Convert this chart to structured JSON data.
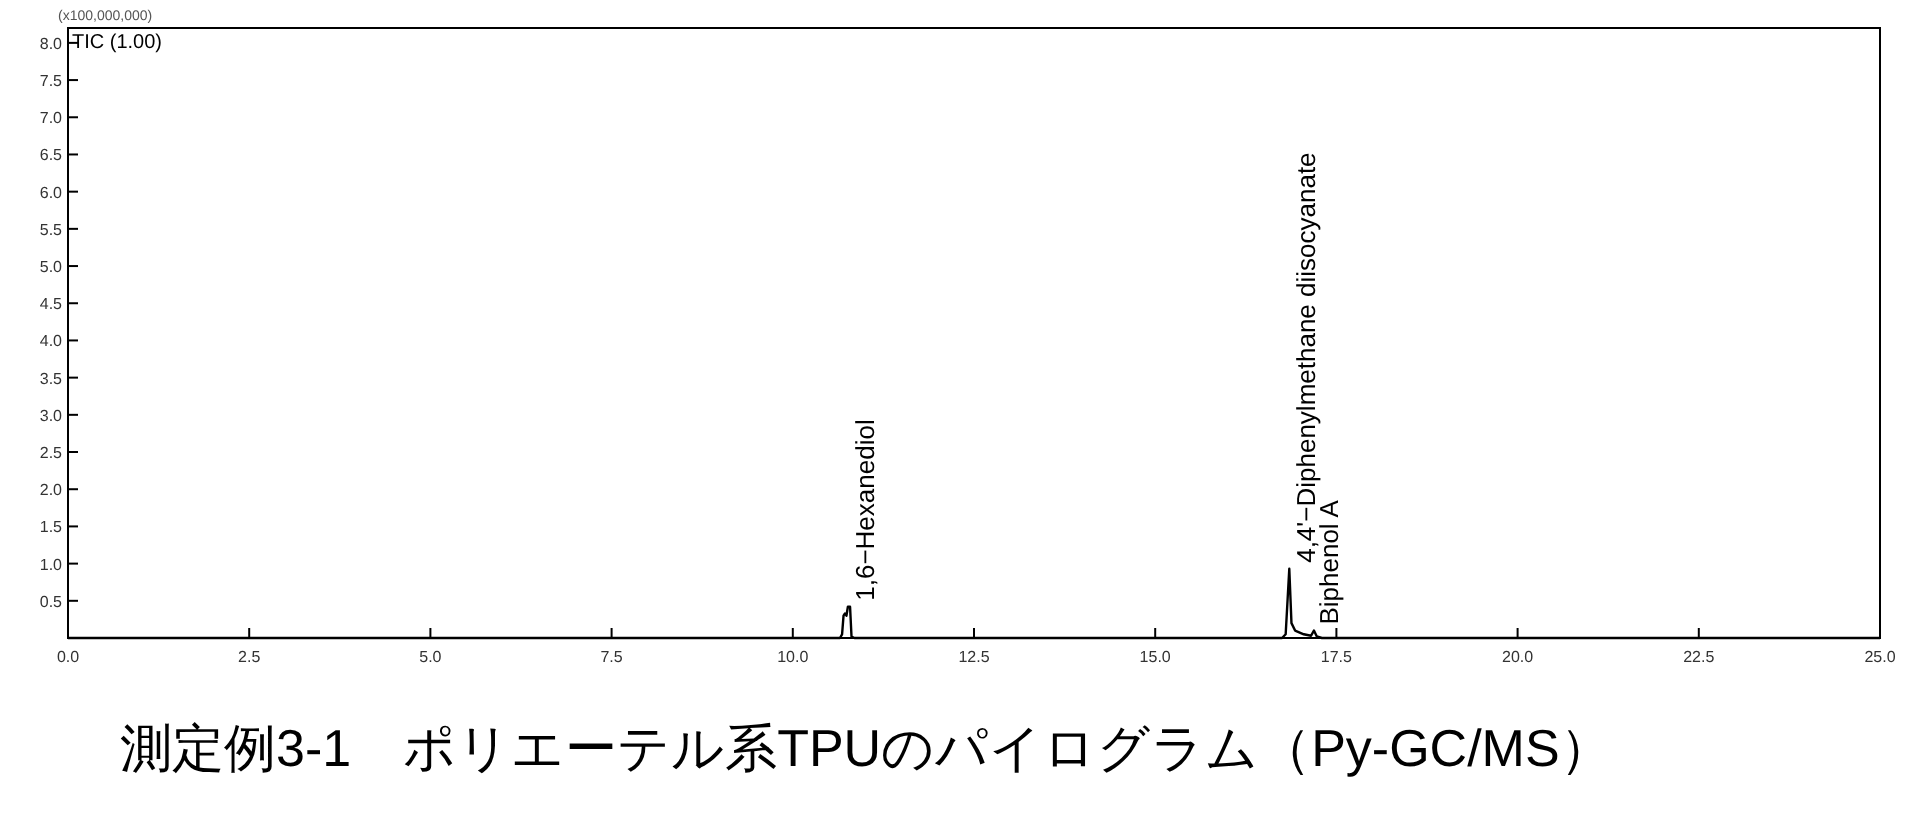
{
  "chart_data": {
    "type": "line",
    "title": "測定例3-1　ポリエーテル系TPUのパイログラム（Py-GC/MS）",
    "ylabel": "(x100,000,000)",
    "annotations": [
      "TIC (1.00)",
      {
        "text": "1,6−Hexanediol",
        "x": 10.79,
        "y": 0.42
      },
      {
        "text": "4,4'−Diphenylmethane diisocyanate",
        "x": 16.88,
        "y": 0.93
      },
      {
        "text": "Biphenol A",
        "x": 17.19,
        "y": 0.1
      }
    ],
    "xlim": [
      0,
      25
    ],
    "xticks": [
      {
        "value": 0,
        "label": "0.0"
      },
      2.5,
      {
        "value": 5,
        "label": "5.0"
      },
      7.5,
      {
        "value": 10,
        "label": "10.0"
      },
      12.5,
      {
        "value": 15,
        "label": "15.0"
      },
      17.5,
      {
        "value": 20,
        "label": "20.0"
      },
      22.5,
      {
        "value": 25,
        "label": "25.0"
      }
    ],
    "ylim": [
      0,
      8.2
    ],
    "yticks": [
      0.5,
      {
        "value": 1,
        "label": "1.0"
      },
      1.5,
      {
        "value": 2,
        "label": "2.0"
      },
      2.5,
      {
        "value": 3,
        "label": "3.0"
      },
      3.5,
      {
        "value": 4,
        "label": "4.0"
      },
      4.5,
      {
        "value": 5,
        "label": "5.0"
      },
      5.5,
      {
        "value": 6,
        "label": "6.0"
      },
      6.5,
      {
        "value": 7,
        "label": "7.0"
      },
      7.5,
      {
        "value": 8,
        "label": "8.0"
      }
    ],
    "series": [
      {
        "color": "#000000",
        "x": [
          0,
          10.65,
          10.68,
          10.7,
          10.72,
          10.74,
          10.76,
          10.79,
          10.81,
          10.85,
          16.75,
          16.8,
          16.85,
          16.88,
          16.93,
          17.05,
          17.15,
          17.19,
          17.23,
          17.3,
          25
        ],
        "values": [
          0,
          0,
          0.05,
          0.3,
          0.33,
          0.3,
          0.42,
          0.42,
          0.02,
          0,
          0,
          0.05,
          0.93,
          0.2,
          0.1,
          0.05,
          0.03,
          0.1,
          0.02,
          0,
          0
        ]
      }
    ]
  }
}
